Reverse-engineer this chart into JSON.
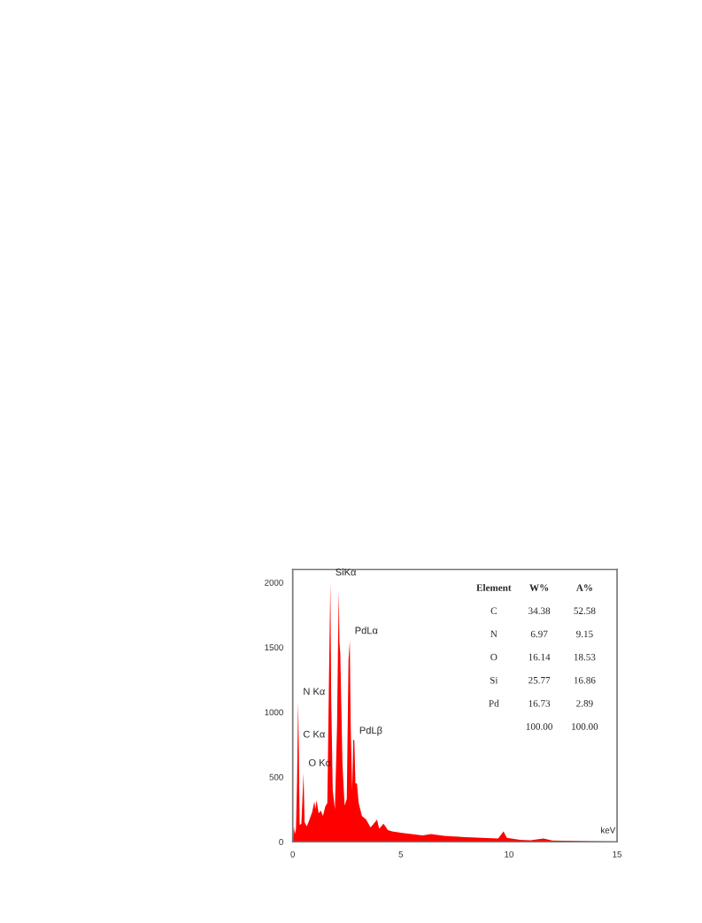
{
  "chart_data": {
    "type": "area",
    "xlabel": "keV",
    "color": "#ff0000",
    "x": [
      0.0,
      0.05,
      0.1,
      0.15,
      0.2,
      0.25,
      0.28,
      0.32,
      0.4,
      0.5,
      0.55,
      0.65,
      0.75,
      0.9,
      1.0,
      1.05,
      1.1,
      1.2,
      1.3,
      1.4,
      1.5,
      1.6,
      1.68,
      1.74,
      1.78,
      1.85,
      1.95,
      2.05,
      2.1,
      2.13,
      2.16,
      2.2,
      2.3,
      2.4,
      2.5,
      2.58,
      2.64,
      2.68,
      2.75,
      2.8,
      2.85,
      2.9,
      2.97,
      3.05,
      3.2,
      3.4,
      3.6,
      3.9,
      4.0,
      4.2,
      4.4,
      4.6,
      5.0,
      5.5,
      6.0,
      6.4,
      7.0,
      7.5,
      8.0,
      8.5,
      9.0,
      9.5,
      9.75,
      9.9,
      10.5,
      11.0,
      11.6,
      12.0,
      13.0,
      14.0,
      15.0
    ],
    "values": [
      0,
      120,
      60,
      100,
      470,
      1080,
      750,
      130,
      140,
      530,
      150,
      120,
      160,
      230,
      310,
      250,
      320,
      220,
      240,
      200,
      270,
      300,
      1300,
      2000,
      1100,
      400,
      250,
      900,
      1580,
      1940,
      1540,
      1450,
      600,
      280,
      330,
      1400,
      1550,
      900,
      400,
      790,
      780,
      450,
      450,
      300,
      200,
      170,
      110,
      170,
      100,
      140,
      90,
      80,
      70,
      60,
      50,
      60,
      45,
      40,
      35,
      32,
      28,
      25,
      80,
      30,
      15,
      12,
      25,
      10,
      6,
      4,
      2
    ],
    "xlim": [
      0,
      15
    ],
    "ylim": [
      0,
      2100
    ],
    "xticks": [
      0,
      5,
      10,
      15
    ],
    "yticks": [
      0,
      500,
      1000,
      1500,
      2000
    ],
    "annotations": [
      {
        "text": "SiKα",
        "x": 1.74,
        "y": 2000
      },
      {
        "text": "PdLα",
        "x": 2.64,
        "y": 1550
      },
      {
        "text": "PdLβ",
        "x": 2.85,
        "y": 780
      },
      {
        "text": "N Kα",
        "x": 0.25,
        "y": 1080
      },
      {
        "text": "C Kα",
        "x": 0.25,
        "y": 750
      },
      {
        "text": "O Kα",
        "x": 0.5,
        "y": 530
      },
      "Element",
      "W%",
      "A%",
      "C",
      "34.38",
      "52.58",
      "N",
      "6.97",
      "9.15",
      "O",
      "16.14",
      "18.53",
      "Si",
      "25.77",
      "16.86",
      "Pd",
      "16.73",
      "2.89",
      "100.00",
      "100.00"
    ]
  }
}
